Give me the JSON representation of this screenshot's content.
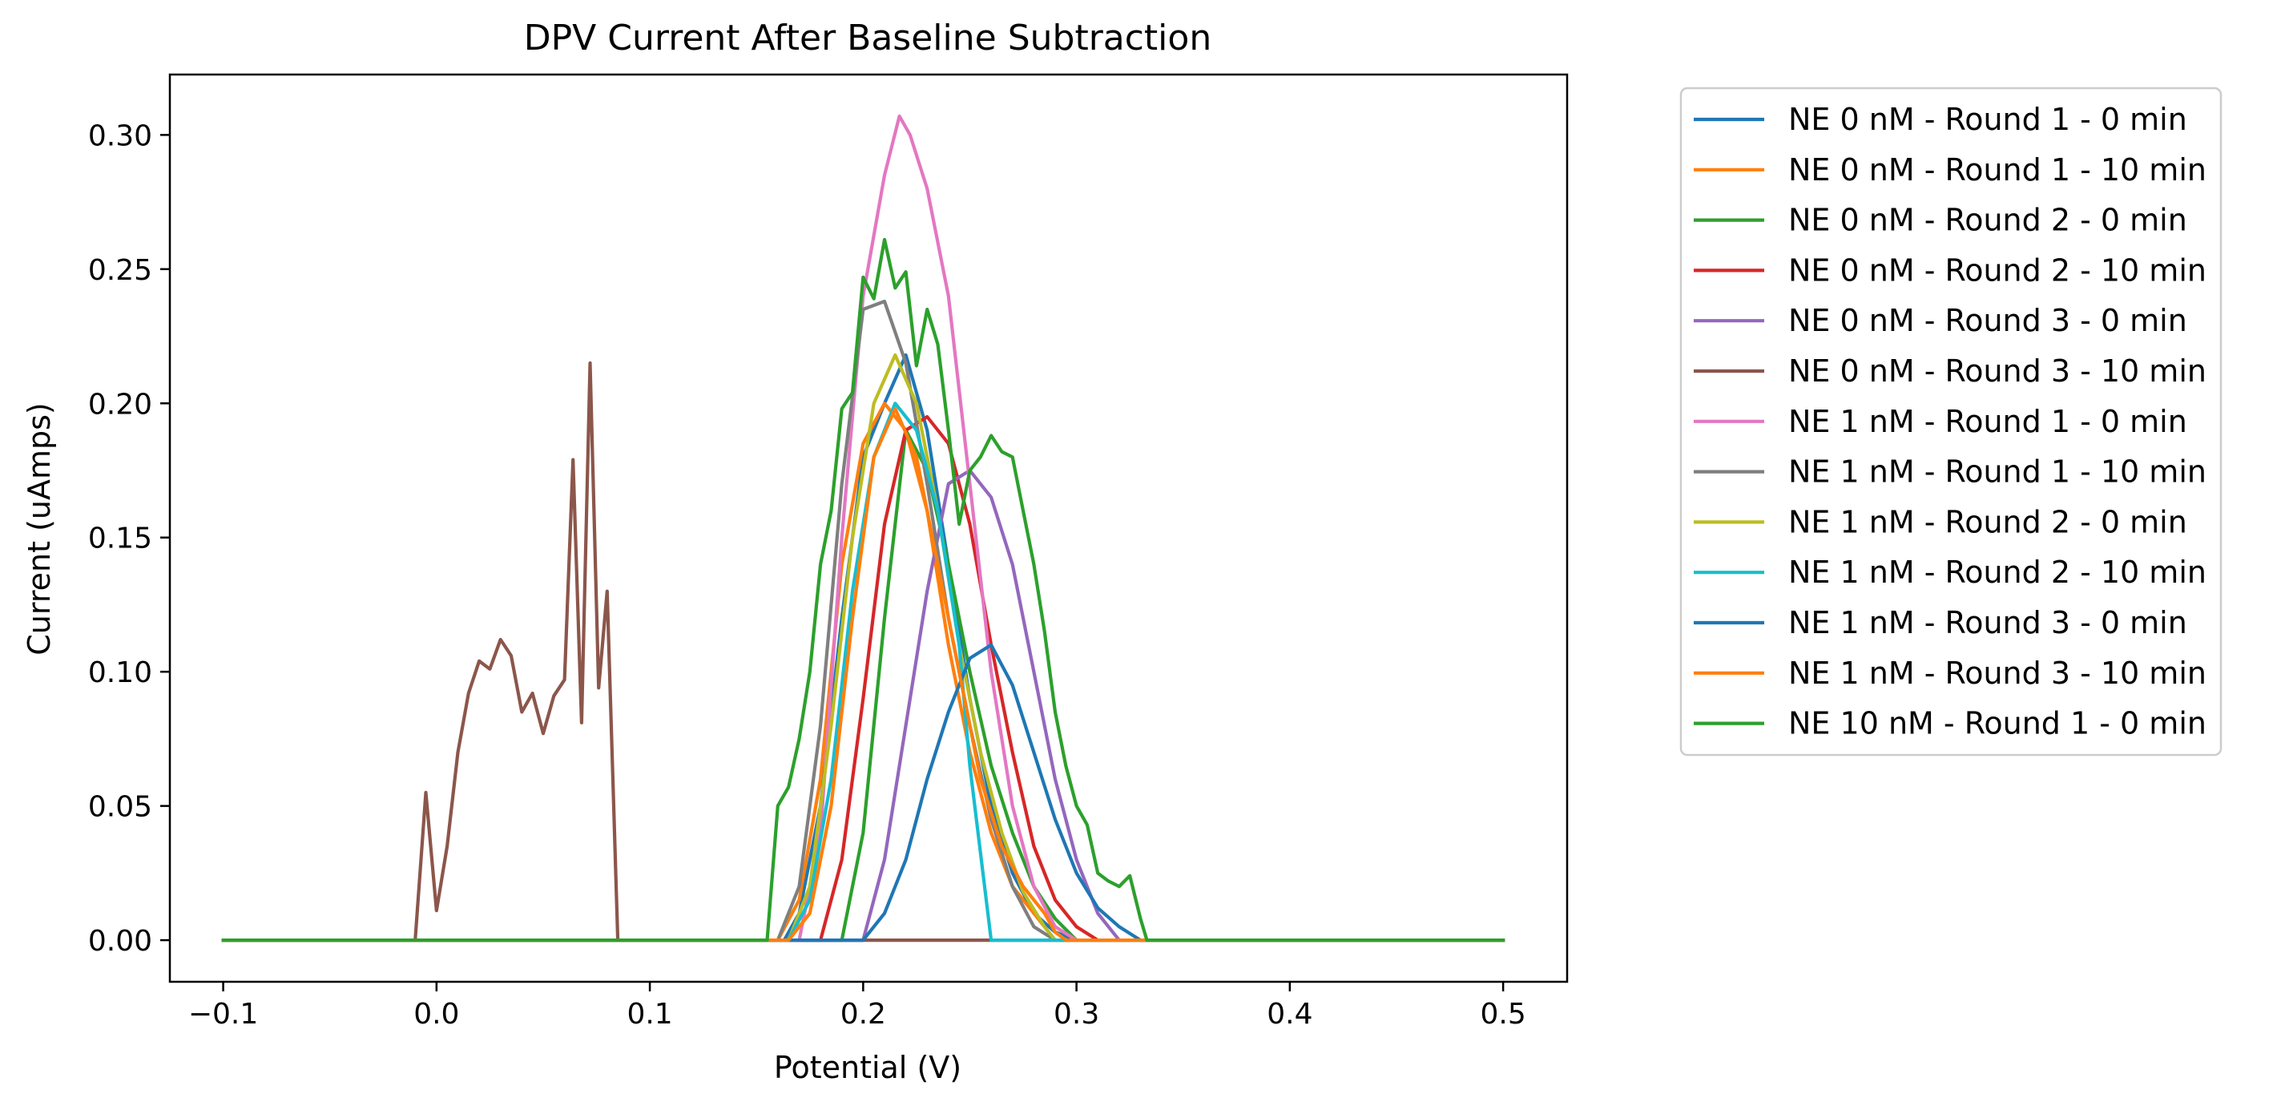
{
  "chart_data": {
    "type": "line",
    "title": "DPV Current After Baseline Subtraction",
    "xlabel": "Potential (V)",
    "ylabel": "Current (uAmps)",
    "xlim": [
      -0.125,
      0.53
    ],
    "ylim": [
      -0.0155,
      0.3225
    ],
    "xticks": [
      -0.1,
      0.0,
      0.1,
      0.2,
      0.3,
      0.4,
      0.5
    ],
    "xtick_labels": [
      "−0.1",
      "0.0",
      "0.1",
      "0.2",
      "0.3",
      "0.4",
      "0.5"
    ],
    "yticks": [
      0.0,
      0.05,
      0.1,
      0.15,
      0.2,
      0.25,
      0.3
    ],
    "ytick_labels": [
      "0.00",
      "0.05",
      "0.10",
      "0.15",
      "0.20",
      "0.25",
      "0.30"
    ],
    "grid": false,
    "legend_position": "outside-right",
    "series": [
      {
        "name": "NE 0 nM - Round 1 - 0 min",
        "color": "#1f77b4",
        "points": [
          [
            -0.1,
            0
          ],
          [
            0.163,
            0
          ],
          [
            0.17,
            0.01
          ],
          [
            0.18,
            0.05
          ],
          [
            0.19,
            0.12
          ],
          [
            0.2,
            0.18
          ],
          [
            0.21,
            0.2
          ],
          [
            0.22,
            0.218
          ],
          [
            0.23,
            0.19
          ],
          [
            0.24,
            0.14
          ],
          [
            0.25,
            0.09
          ],
          [
            0.26,
            0.05
          ],
          [
            0.27,
            0.025
          ],
          [
            0.28,
            0.01
          ],
          [
            0.29,
            0.003
          ],
          [
            0.3,
            0
          ],
          [
            0.5,
            0
          ]
        ]
      },
      {
        "name": "NE 0 nM - Round 1 - 10 min",
        "color": "#ff7f0e",
        "points": [
          [
            -0.1,
            0
          ],
          [
            0.16,
            0
          ],
          [
            0.17,
            0.015
          ],
          [
            0.18,
            0.06
          ],
          [
            0.19,
            0.14
          ],
          [
            0.2,
            0.185
          ],
          [
            0.21,
            0.2
          ],
          [
            0.22,
            0.19
          ],
          [
            0.23,
            0.16
          ],
          [
            0.24,
            0.11
          ],
          [
            0.25,
            0.07
          ],
          [
            0.26,
            0.04
          ],
          [
            0.27,
            0.02
          ],
          [
            0.28,
            0.01
          ],
          [
            0.29,
            0
          ],
          [
            0.5,
            0
          ]
        ]
      },
      {
        "name": "NE 0 nM - Round 2 - 0 min",
        "color": "#2ca02c",
        "points": [
          [
            -0.1,
            0
          ],
          [
            0.19,
            0
          ],
          [
            0.2,
            0.04
          ],
          [
            0.21,
            0.12
          ],
          [
            0.22,
            0.19
          ],
          [
            0.23,
            0.175
          ],
          [
            0.24,
            0.14
          ],
          [
            0.25,
            0.1
          ],
          [
            0.26,
            0.065
          ],
          [
            0.27,
            0.04
          ],
          [
            0.28,
            0.02
          ],
          [
            0.29,
            0.008
          ],
          [
            0.3,
            0
          ],
          [
            0.5,
            0
          ]
        ]
      },
      {
        "name": "NE 0 nM - Round 2 - 10 min",
        "color": "#d62728",
        "points": [
          [
            -0.1,
            0
          ],
          [
            0.18,
            0
          ],
          [
            0.19,
            0.03
          ],
          [
            0.2,
            0.09
          ],
          [
            0.21,
            0.155
          ],
          [
            0.22,
            0.19
          ],
          [
            0.23,
            0.195
          ],
          [
            0.24,
            0.185
          ],
          [
            0.25,
            0.155
          ],
          [
            0.26,
            0.11
          ],
          [
            0.27,
            0.07
          ],
          [
            0.28,
            0.035
          ],
          [
            0.29,
            0.015
          ],
          [
            0.3,
            0.005
          ],
          [
            0.31,
            0
          ],
          [
            0.5,
            0
          ]
        ]
      },
      {
        "name": "NE 0 nM - Round 3 - 0 min",
        "color": "#9467bd",
        "points": [
          [
            -0.1,
            0
          ],
          [
            0.2,
            0
          ],
          [
            0.21,
            0.03
          ],
          [
            0.22,
            0.08
          ],
          [
            0.23,
            0.13
          ],
          [
            0.24,
            0.17
          ],
          [
            0.25,
            0.175
          ],
          [
            0.26,
            0.165
          ],
          [
            0.27,
            0.14
          ],
          [
            0.28,
            0.1
          ],
          [
            0.29,
            0.06
          ],
          [
            0.3,
            0.03
          ],
          [
            0.31,
            0.01
          ],
          [
            0.32,
            0
          ],
          [
            0.5,
            0
          ]
        ]
      },
      {
        "name": "NE 0 nM - Round 3 - 10 min",
        "color": "#8c564b",
        "points": [
          [
            -0.1,
            0
          ],
          [
            -0.01,
            0
          ],
          [
            -0.005,
            0.055
          ],
          [
            0.0,
            0.011
          ],
          [
            0.005,
            0.035
          ],
          [
            0.01,
            0.07
          ],
          [
            0.015,
            0.092
          ],
          [
            0.02,
            0.104
          ],
          [
            0.025,
            0.101
          ],
          [
            0.03,
            0.112
          ],
          [
            0.035,
            0.106
          ],
          [
            0.04,
            0.085
          ],
          [
            0.045,
            0.092
          ],
          [
            0.05,
            0.077
          ],
          [
            0.055,
            0.091
          ],
          [
            0.06,
            0.097
          ],
          [
            0.064,
            0.179
          ],
          [
            0.068,
            0.081
          ],
          [
            0.072,
            0.215
          ],
          [
            0.076,
            0.094
          ],
          [
            0.08,
            0.13
          ],
          [
            0.085,
            0
          ],
          [
            0.5,
            0
          ]
        ]
      },
      {
        "name": "NE 1 nM - Round 1 - 0 min",
        "color": "#e377c2",
        "points": [
          [
            -0.1,
            0
          ],
          [
            0.17,
            0
          ],
          [
            0.18,
            0.04
          ],
          [
            0.19,
            0.15
          ],
          [
            0.2,
            0.24
          ],
          [
            0.21,
            0.285
          ],
          [
            0.217,
            0.307
          ],
          [
            0.222,
            0.3
          ],
          [
            0.23,
            0.28
          ],
          [
            0.24,
            0.24
          ],
          [
            0.25,
            0.17
          ],
          [
            0.26,
            0.1
          ],
          [
            0.27,
            0.05
          ],
          [
            0.28,
            0.02
          ],
          [
            0.29,
            0.005
          ],
          [
            0.3,
            0
          ],
          [
            0.5,
            0
          ]
        ]
      },
      {
        "name": "NE 1 nM - Round 1 - 10 min",
        "color": "#7f7f7f",
        "points": [
          [
            -0.1,
            0
          ],
          [
            0.16,
            0
          ],
          [
            0.17,
            0.02
          ],
          [
            0.18,
            0.08
          ],
          [
            0.19,
            0.17
          ],
          [
            0.2,
            0.235
          ],
          [
            0.21,
            0.238
          ],
          [
            0.22,
            0.215
          ],
          [
            0.23,
            0.17
          ],
          [
            0.24,
            0.12
          ],
          [
            0.25,
            0.08
          ],
          [
            0.26,
            0.045
          ],
          [
            0.27,
            0.02
          ],
          [
            0.28,
            0.005
          ],
          [
            0.29,
            0
          ],
          [
            0.5,
            0
          ]
        ]
      },
      {
        "name": "NE 1 nM - Round 2 - 0 min",
        "color": "#bcbd22",
        "points": [
          [
            -0.1,
            0
          ],
          [
            0.165,
            0
          ],
          [
            0.175,
            0.02
          ],
          [
            0.185,
            0.08
          ],
          [
            0.195,
            0.15
          ],
          [
            0.205,
            0.2
          ],
          [
            0.215,
            0.218
          ],
          [
            0.225,
            0.2
          ],
          [
            0.235,
            0.16
          ],
          [
            0.245,
            0.11
          ],
          [
            0.255,
            0.07
          ],
          [
            0.265,
            0.04
          ],
          [
            0.275,
            0.018
          ],
          [
            0.285,
            0.005
          ],
          [
            0.29,
            0
          ],
          [
            0.5,
            0
          ]
        ]
      },
      {
        "name": "NE 1 nM - Round 2 - 10 min",
        "color": "#17becf",
        "points": [
          [
            -0.1,
            0
          ],
          [
            0.165,
            0
          ],
          [
            0.175,
            0.015
          ],
          [
            0.185,
            0.06
          ],
          [
            0.195,
            0.13
          ],
          [
            0.205,
            0.18
          ],
          [
            0.215,
            0.2
          ],
          [
            0.225,
            0.19
          ],
          [
            0.235,
            0.16
          ],
          [
            0.245,
            0.11
          ],
          [
            0.25,
            0.065
          ],
          [
            0.26,
            0
          ],
          [
            0.5,
            0
          ]
        ]
      },
      {
        "name": "NE 1 nM - Round 3 - 0 min",
        "color": "#1f77b4",
        "points": [
          [
            -0.1,
            0
          ],
          [
            0.2,
            0
          ],
          [
            0.21,
            0.01
          ],
          [
            0.22,
            0.03
          ],
          [
            0.23,
            0.06
          ],
          [
            0.24,
            0.085
          ],
          [
            0.25,
            0.105
          ],
          [
            0.26,
            0.11
          ],
          [
            0.27,
            0.095
          ],
          [
            0.28,
            0.07
          ],
          [
            0.29,
            0.045
          ],
          [
            0.3,
            0.025
          ],
          [
            0.31,
            0.012
          ],
          [
            0.32,
            0.005
          ],
          [
            0.33,
            0
          ],
          [
            0.5,
            0
          ]
        ]
      },
      {
        "name": "NE 1 nM - Round 3 - 10 min",
        "color": "#ff7f0e",
        "points": [
          [
            -0.1,
            0
          ],
          [
            0.165,
            0
          ],
          [
            0.175,
            0.01
          ],
          [
            0.185,
            0.05
          ],
          [
            0.195,
            0.12
          ],
          [
            0.205,
            0.18
          ],
          [
            0.215,
            0.198
          ],
          [
            0.225,
            0.18
          ],
          [
            0.235,
            0.14
          ],
          [
            0.245,
            0.1
          ],
          [
            0.255,
            0.06
          ],
          [
            0.265,
            0.035
          ],
          [
            0.275,
            0.02
          ],
          [
            0.285,
            0.01
          ],
          [
            0.29,
            0.003
          ],
          [
            0.295,
            0
          ],
          [
            0.5,
            0
          ]
        ]
      },
      {
        "name": "NE 10 nM - Round 1 - 0 min",
        "color": "#2ca02c",
        "points": [
          [
            -0.1,
            0
          ],
          [
            0.155,
            0
          ],
          [
            0.16,
            0.05
          ],
          [
            0.165,
            0.057
          ],
          [
            0.17,
            0.075
          ],
          [
            0.175,
            0.1
          ],
          [
            0.18,
            0.14
          ],
          [
            0.185,
            0.16
          ],
          [
            0.19,
            0.198
          ],
          [
            0.195,
            0.204
          ],
          [
            0.2,
            0.247
          ],
          [
            0.205,
            0.239
          ],
          [
            0.21,
            0.261
          ],
          [
            0.215,
            0.243
          ],
          [
            0.22,
            0.249
          ],
          [
            0.225,
            0.214
          ],
          [
            0.23,
            0.235
          ],
          [
            0.235,
            0.222
          ],
          [
            0.24,
            0.19
          ],
          [
            0.245,
            0.155
          ],
          [
            0.25,
            0.175
          ],
          [
            0.255,
            0.18
          ],
          [
            0.26,
            0.188
          ],
          [
            0.265,
            0.182
          ],
          [
            0.27,
            0.18
          ],
          [
            0.275,
            0.16
          ],
          [
            0.28,
            0.14
          ],
          [
            0.285,
            0.115
          ],
          [
            0.29,
            0.085
          ],
          [
            0.295,
            0.065
          ],
          [
            0.3,
            0.05
          ],
          [
            0.305,
            0.043
          ],
          [
            0.31,
            0.025
          ],
          [
            0.315,
            0.022
          ],
          [
            0.32,
            0.02
          ],
          [
            0.325,
            0.024
          ],
          [
            0.33,
            0.008
          ],
          [
            0.333,
            0
          ],
          [
            0.5,
            0
          ]
        ]
      }
    ]
  }
}
